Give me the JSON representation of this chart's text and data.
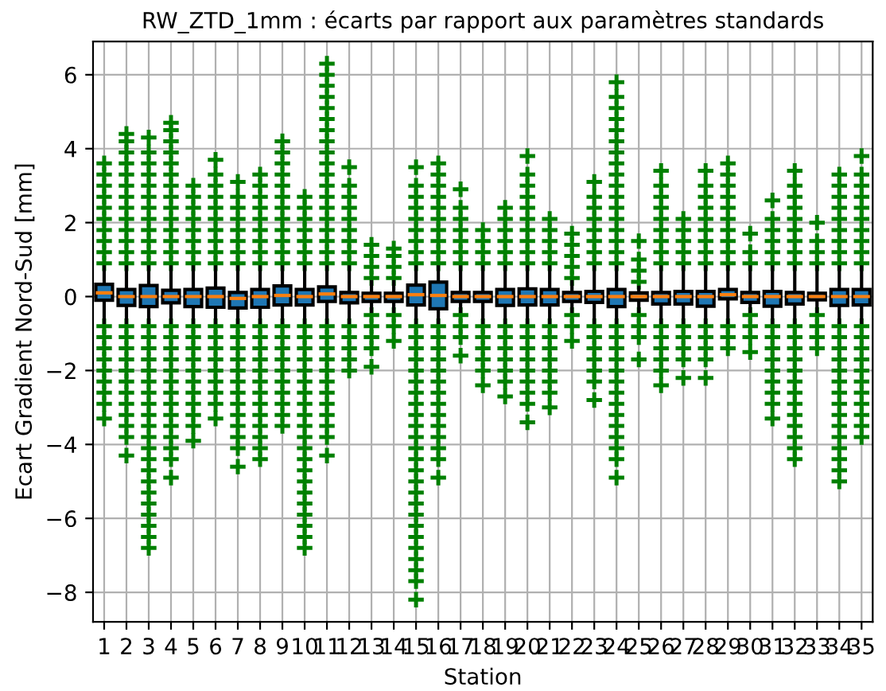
{
  "chart_data": {
    "type": "box",
    "title": "RW_ZTD_1mm : écarts par rapport aux paramètres standards",
    "xlabel": "Station",
    "ylabel": "Ecart Gradient Nord-Sud [mm]",
    "categories": [
      "1",
      "2",
      "3",
      "4",
      "5",
      "6",
      "7",
      "8",
      "9",
      "10",
      "11",
      "12",
      "13",
      "14",
      "15",
      "16",
      "17",
      "18",
      "19",
      "20",
      "21",
      "22",
      "23",
      "24",
      "25",
      "26",
      "27",
      "28",
      "29",
      "30",
      "31",
      "32",
      "33",
      "34",
      "35"
    ],
    "ylim": [
      -8.8,
      6.9
    ],
    "yticks": [
      -8,
      -6,
      -4,
      -2,
      0,
      2,
      4,
      6
    ],
    "grid": true,
    "marker": "cross",
    "color": "#008000",
    "series": [
      {
        "color": "#1f77b4",
        "boxes": [
          {
            "low": -0.7,
            "q1": -0.1,
            "median": 0.1,
            "q3": 0.33,
            "high": 0.8,
            "outliers": [
              0.9,
              1.2,
              1.5,
              1.8,
              2.1,
              2.4,
              2.7,
              3.0,
              3.3,
              3.6,
              -0.8,
              -1.1,
              -1.4,
              -1.7,
              -2.0,
              -2.3,
              -2.6,
              -2.9,
              -3.3
            ]
          },
          {
            "low": -0.7,
            "q1": -0.24,
            "median": 0.0,
            "q3": 0.19,
            "high": 0.8,
            "outliers": [
              0.9,
              1.2,
              1.5,
              1.8,
              2.1,
              2.4,
              2.7,
              3.0,
              3.3,
              3.6,
              3.9,
              4.2,
              4.4,
              -0.8,
              -1.1,
              -1.4,
              -1.7,
              -2.0,
              -2.3,
              -2.6,
              -2.9,
              -3.2,
              -3.5,
              -3.8,
              -4.3
            ]
          },
          {
            "low": -0.7,
            "q1": -0.27,
            "median": 0.0,
            "q3": 0.3,
            "high": 0.8,
            "outliers": [
              0.9,
              1.2,
              1.5,
              1.8,
              2.1,
              2.4,
              2.7,
              3.0,
              3.3,
              3.6,
              3.9,
              4.3,
              -0.8,
              -1.1,
              -1.4,
              -1.7,
              -2.0,
              -2.3,
              -2.6,
              -2.9,
              -3.2,
              -3.5,
              -3.8,
              -4.1,
              -4.4,
              -4.7,
              -5.0,
              -5.3,
              -5.6,
              -5.9,
              -6.2,
              -6.5,
              -6.8
            ]
          },
          {
            "low": -0.7,
            "q1": -0.17,
            "median": 0.0,
            "q3": 0.17,
            "high": 0.8,
            "outliers": [
              0.9,
              1.2,
              1.5,
              1.8,
              2.1,
              2.4,
              2.7,
              3.0,
              3.3,
              3.6,
              3.9,
              4.2,
              4.5,
              4.7,
              -0.8,
              -1.1,
              -1.4,
              -1.7,
              -2.0,
              -2.3,
              -2.6,
              -2.9,
              -3.2,
              -3.5,
              -3.8,
              -4.1,
              -4.4,
              -4.9
            ]
          },
          {
            "low": -0.7,
            "q1": -0.27,
            "median": 0.0,
            "q3": 0.19,
            "high": 0.8,
            "outliers": [
              0.9,
              1.2,
              1.5,
              1.8,
              2.1,
              2.4,
              2.7,
              3.0,
              -0.8,
              -1.1,
              -1.4,
              -1.7,
              -2.0,
              -2.3,
              -2.6,
              -2.9,
              -3.2,
              -3.5,
              -3.9
            ]
          },
          {
            "low": -0.7,
            "q1": -0.29,
            "median": 0.0,
            "q3": 0.23,
            "high": 0.8,
            "outliers": [
              0.9,
              1.2,
              1.5,
              1.8,
              2.1,
              2.4,
              2.7,
              3.0,
              3.3,
              3.7,
              -0.8,
              -1.1,
              -1.4,
              -1.7,
              -2.0,
              -2.3,
              -2.6,
              -2.9,
              -3.3
            ]
          },
          {
            "low": -0.7,
            "q1": -0.31,
            "median": -0.05,
            "q3": 0.11,
            "high": 0.8,
            "outliers": [
              0.9,
              1.2,
              1.5,
              1.8,
              2.1,
              2.4,
              2.7,
              3.1,
              -0.8,
              -1.1,
              -1.4,
              -1.7,
              -2.0,
              -2.3,
              -2.6,
              -2.9,
              -3.2,
              -3.5,
              -3.8,
              -4.1,
              -4.6
            ]
          },
          {
            "low": -0.7,
            "q1": -0.29,
            "median": 0.0,
            "q3": 0.19,
            "high": 0.8,
            "outliers": [
              0.9,
              1.2,
              1.5,
              1.8,
              2.1,
              2.4,
              2.7,
              3.0,
              3.3,
              -0.8,
              -1.1,
              -1.4,
              -1.7,
              -2.0,
              -2.3,
              -2.6,
              -2.9,
              -3.2,
              -3.5,
              -3.8,
              -4.1,
              -4.4
            ]
          },
          {
            "low": -0.7,
            "q1": -0.23,
            "median": 0.03,
            "q3": 0.29,
            "high": 0.8,
            "outliers": [
              0.9,
              1.2,
              1.5,
              1.8,
              2.1,
              2.4,
              2.7,
              3.0,
              3.3,
              3.6,
              3.9,
              4.2,
              -0.8,
              -1.1,
              -1.4,
              -1.7,
              -2.0,
              -2.3,
              -2.6,
              -2.9,
              -3.2,
              -3.5
            ]
          },
          {
            "low": -0.7,
            "q1": -0.23,
            "median": 0.0,
            "q3": 0.19,
            "high": 0.8,
            "outliers": [
              0.9,
              1.2,
              1.5,
              1.8,
              2.1,
              2.4,
              2.7,
              -0.8,
              -1.1,
              -1.4,
              -1.7,
              -2.0,
              -2.3,
              -2.6,
              -2.9,
              -3.2,
              -3.5,
              -3.8,
              -4.1,
              -4.4,
              -4.7,
              -5.0,
              -5.3,
              -5.6,
              -5.9,
              -6.2,
              -6.5,
              -6.8
            ]
          },
          {
            "low": -0.7,
            "q1": -0.13,
            "median": 0.07,
            "q3": 0.26,
            "high": 0.8,
            "outliers": [
              0.9,
              1.2,
              1.5,
              1.8,
              2.1,
              2.4,
              2.7,
              3.0,
              3.3,
              3.6,
              3.9,
              4.2,
              4.5,
              4.8,
              5.1,
              5.4,
              5.7,
              6.0,
              6.3,
              -0.8,
              -1.1,
              -1.4,
              -1.7,
              -2.0,
              -2.3,
              -2.6,
              -2.9,
              -3.2,
              -3.5,
              -3.8,
              -4.3
            ]
          },
          {
            "low": -0.7,
            "q1": -0.17,
            "median": 0.0,
            "q3": 0.11,
            "high": 0.8,
            "outliers": [
              0.9,
              1.2,
              1.5,
              1.8,
              2.1,
              2.4,
              2.7,
              3.0,
              3.5,
              -0.8,
              -1.1,
              -1.4,
              -1.7,
              -2.0
            ]
          },
          {
            "low": -0.4,
            "q1": -0.13,
            "median": 0.0,
            "q3": 0.09,
            "high": 0.4,
            "outliers": [
              0.5,
              0.8,
              1.1,
              1.4,
              -0.5,
              -0.8,
              -1.1,
              -1.4,
              -1.9
            ]
          },
          {
            "low": -0.4,
            "q1": -0.13,
            "median": 0.0,
            "q3": 0.09,
            "high": 0.4,
            "outliers": [
              0.5,
              0.8,
              1.1,
              1.3,
              -0.5,
              -0.8,
              -1.2
            ]
          },
          {
            "low": -0.7,
            "q1": -0.23,
            "median": 0.05,
            "q3": 0.31,
            "high": 0.8,
            "outliers": [
              0.9,
              1.2,
              1.5,
              1.8,
              2.1,
              2.4,
              2.7,
              3.0,
              3.5,
              -0.8,
              -1.1,
              -1.4,
              -1.7,
              -2.0,
              -2.3,
              -2.6,
              -2.9,
              -3.2,
              -3.5,
              -3.8,
              -4.1,
              -4.4,
              -4.7,
              -5.0,
              -5.3,
              -5.6,
              -5.9,
              -6.2,
              -6.5,
              -6.8,
              -7.1,
              -7.4,
              -7.7,
              -8.2
            ]
          },
          {
            "low": -0.7,
            "q1": -0.33,
            "median": 0.03,
            "q3": 0.39,
            "high": 0.8,
            "outliers": [
              0.9,
              1.2,
              1.5,
              1.8,
              2.1,
              2.4,
              2.7,
              3.0,
              3.3,
              3.6,
              -0.8,
              -1.1,
              -1.4,
              -1.7,
              -2.0,
              -2.3,
              -2.6,
              -2.9,
              -3.2,
              -3.5,
              -3.8,
              -4.1,
              -4.4,
              -4.9
            ]
          },
          {
            "low": -0.4,
            "q1": -0.13,
            "median": 0.0,
            "q3": 0.11,
            "high": 0.8,
            "outliers": [
              0.9,
              1.2,
              1.5,
              1.8,
              2.1,
              2.4,
              2.9,
              -0.5,
              -0.8,
              -1.1,
              -1.6
            ]
          },
          {
            "low": -0.7,
            "q1": -0.13,
            "median": 0.0,
            "q3": 0.11,
            "high": 0.8,
            "outliers": [
              0.9,
              1.2,
              1.5,
              1.8,
              -0.8,
              -1.1,
              -1.4,
              -1.7,
              -2.0,
              -2.4
            ]
          },
          {
            "low": -0.7,
            "q1": -0.24,
            "median": 0.0,
            "q3": 0.19,
            "high": 0.8,
            "outliers": [
              0.9,
              1.2,
              1.5,
              1.8,
              2.1,
              2.4,
              -0.8,
              -1.1,
              -1.4,
              -1.7,
              -2.0,
              -2.3,
              -2.7
            ]
          },
          {
            "low": -0.7,
            "q1": -0.23,
            "median": 0.0,
            "q3": 0.21,
            "high": 0.8,
            "outliers": [
              0.9,
              1.2,
              1.5,
              1.8,
              2.1,
              2.4,
              2.7,
              3.0,
              3.3,
              3.8,
              -0.8,
              -1.1,
              -1.4,
              -1.7,
              -2.0,
              -2.3,
              -2.6,
              -2.9,
              -3.4
            ]
          },
          {
            "low": -0.7,
            "q1": -0.23,
            "median": 0.0,
            "q3": 0.19,
            "high": 0.8,
            "outliers": [
              0.9,
              1.2,
              1.5,
              1.8,
              2.1,
              -0.8,
              -1.1,
              -1.4,
              -1.7,
              -2.0,
              -2.3,
              -2.6,
              -3.0
            ]
          },
          {
            "low": -0.4,
            "q1": -0.13,
            "median": 0.0,
            "q3": 0.11,
            "high": 0.4,
            "outliers": [
              0.5,
              0.8,
              1.1,
              1.4,
              1.7,
              -0.5,
              -0.8,
              -1.2
            ]
          },
          {
            "low": -0.7,
            "q1": -0.16,
            "median": 0.0,
            "q3": 0.14,
            "high": 0.8,
            "outliers": [
              0.9,
              1.2,
              1.5,
              1.8,
              2.1,
              2.4,
              2.7,
              3.1,
              -0.8,
              -1.1,
              -1.4,
              -1.7,
              -2.0,
              -2.3,
              -2.8
            ]
          },
          {
            "low": -0.7,
            "q1": -0.27,
            "median": 0.0,
            "q3": 0.19,
            "high": 0.8,
            "outliers": [
              0.9,
              1.2,
              1.5,
              1.8,
              2.1,
              2.4,
              2.7,
              3.0,
              3.3,
              3.6,
              3.9,
              4.2,
              4.5,
              4.8,
              5.1,
              5.4,
              5.8,
              -0.8,
              -1.1,
              -1.4,
              -1.7,
              -2.0,
              -2.3,
              -2.6,
              -2.9,
              -3.2,
              -3.5,
              -3.8,
              -4.1,
              -4.4,
              -4.9
            ]
          },
          {
            "low": -0.4,
            "q1": -0.1,
            "median": 0.0,
            "q3": 0.1,
            "high": 0.25,
            "outliers": [
              0.4,
              0.7,
              1.0,
              1.5,
              -0.5,
              -0.8,
              -1.1,
              -1.7
            ]
          },
          {
            "low": -0.7,
            "q1": -0.2,
            "median": 0.0,
            "q3": 0.11,
            "high": 0.8,
            "outliers": [
              0.9,
              1.2,
              1.5,
              1.8,
              2.1,
              2.4,
              2.7,
              3.0,
              3.4,
              -0.8,
              -1.1,
              -1.4,
              -1.7,
              -2.0,
              -2.4
            ]
          },
          {
            "low": -0.7,
            "q1": -0.2,
            "median": 0.0,
            "q3": 0.14,
            "high": 0.8,
            "outliers": [
              0.9,
              1.2,
              1.5,
              1.8,
              2.1,
              -0.8,
              -1.1,
              -1.4,
              -1.7,
              -2.2
            ]
          },
          {
            "low": -0.7,
            "q1": -0.26,
            "median": 0.0,
            "q3": 0.14,
            "high": 0.8,
            "outliers": [
              0.9,
              1.2,
              1.5,
              1.8,
              2.1,
              2.4,
              2.7,
              3.0,
              3.4,
              -0.8,
              -1.1,
              -1.4,
              -1.7,
              -2.2
            ]
          },
          {
            "low": -0.7,
            "q1": -0.06,
            "median": 0.05,
            "q3": 0.19,
            "high": 0.8,
            "outliers": [
              0.9,
              1.2,
              1.5,
              1.8,
              2.1,
              2.4,
              2.7,
              3.0,
              3.3,
              3.6,
              -0.8,
              -1.1,
              -1.4
            ]
          },
          {
            "low": -0.4,
            "q1": -0.16,
            "median": 0.0,
            "q3": 0.11,
            "high": 0.8,
            "outliers": [
              0.9,
              1.2,
              1.7,
              -0.5,
              -0.8,
              -1.1,
              -1.5
            ]
          },
          {
            "low": -0.7,
            "q1": -0.26,
            "median": 0.0,
            "q3": 0.14,
            "high": 0.8,
            "outliers": [
              0.9,
              1.2,
              1.5,
              1.8,
              2.1,
              2.6,
              -0.8,
              -1.1,
              -1.4,
              -1.7,
              -2.0,
              -2.3,
              -2.6,
              -2.9,
              -3.3
            ]
          },
          {
            "low": -0.7,
            "q1": -0.2,
            "median": 0.0,
            "q3": 0.11,
            "high": 0.8,
            "outliers": [
              0.9,
              1.2,
              1.5,
              1.8,
              2.1,
              2.4,
              2.7,
              3.0,
              3.4,
              -0.8,
              -1.1,
              -1.4,
              -1.7,
              -2.0,
              -2.3,
              -2.6,
              -2.9,
              -3.2,
              -3.5,
              -3.8,
              -4.1,
              -4.4
            ]
          },
          {
            "low": -0.4,
            "q1": -0.09,
            "median": 0.0,
            "q3": 0.09,
            "high": 0.8,
            "outliers": [
              0.9,
              1.2,
              1.5,
              2.0,
              -0.5,
              -0.8,
              -1.1,
              -1.4
            ]
          },
          {
            "low": -0.7,
            "q1": -0.24,
            "median": 0.0,
            "q3": 0.19,
            "high": 0.8,
            "outliers": [
              0.9,
              1.2,
              1.5,
              1.8,
              2.1,
              2.4,
              2.7,
              3.0,
              3.3,
              -0.8,
              -1.1,
              -1.4,
              -1.7,
              -2.0,
              -2.3,
              -2.6,
              -2.9,
              -3.2,
              -3.5,
              -3.8,
              -4.1,
              -4.4,
              -4.7,
              -5.0
            ]
          },
          {
            "low": -0.7,
            "q1": -0.23,
            "median": 0.0,
            "q3": 0.19,
            "high": 0.8,
            "outliers": [
              0.9,
              1.2,
              1.5,
              1.8,
              2.1,
              2.4,
              2.7,
              3.0,
              3.3,
              3.8,
              -0.8,
              -1.1,
              -1.4,
              -1.7,
              -2.0,
              -2.3,
              -2.6,
              -2.9,
              -3.2,
              -3.5,
              -3.8
            ]
          }
        ]
      }
    ]
  }
}
